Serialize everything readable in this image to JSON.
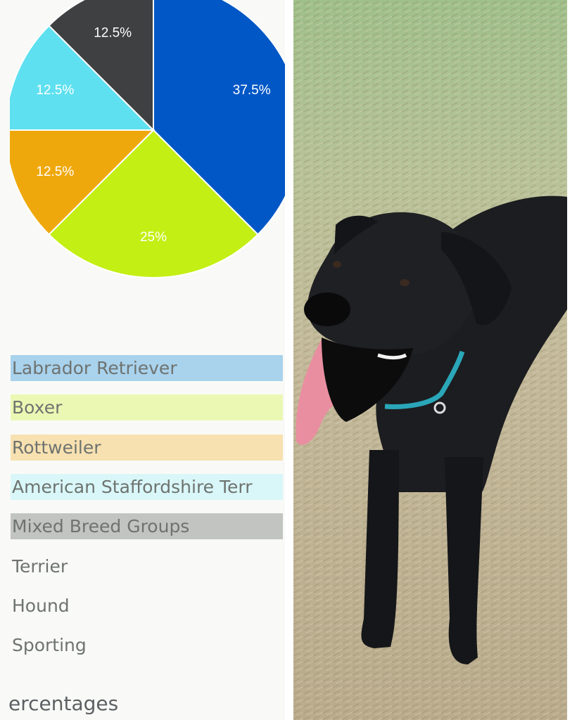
{
  "chart_data": {
    "type": "pie",
    "slices": [
      {
        "label": "37.5%",
        "value": 37.5,
        "color": "#0157c6"
      },
      {
        "label": "25%",
        "value": 25,
        "color": "#c3ef14"
      },
      {
        "label": "12.5%",
        "value": 12.5,
        "color": "#efa80c"
      },
      {
        "label": "12.5%",
        "value": 12.5,
        "color": "#5ee0f0"
      },
      {
        "label": "12.5%",
        "value": 12.5,
        "color": "#3f4042"
      }
    ],
    "start_angle_deg": 0,
    "direction": "clockwise",
    "legend": [
      {
        "label": "Labrador Retriever",
        "swatch": "#a9d2ec"
      },
      {
        "label": "Boxer",
        "swatch": "#ebf8b4"
      },
      {
        "label": "Rottweiler",
        "swatch": "#f8e1b0"
      },
      {
        "label": "American Staffordshire Terr",
        "swatch": "#d9f7f8"
      },
      {
        "label": "Mixed Breed Groups",
        "swatch": "#c2c4c1"
      },
      {
        "label": "Terrier",
        "swatch": ""
      },
      {
        "label": "Hound",
        "swatch": ""
      },
      {
        "label": "Sporting",
        "swatch": ""
      }
    ],
    "legend_placement": "bottom"
  },
  "footer": {
    "text": "ercentages"
  },
  "photo": {
    "subject": "black-dog-photo",
    "fur_color": "#1c1d20",
    "collar_color": "#2aa7b8",
    "tongue_color": "#e98ea0"
  }
}
